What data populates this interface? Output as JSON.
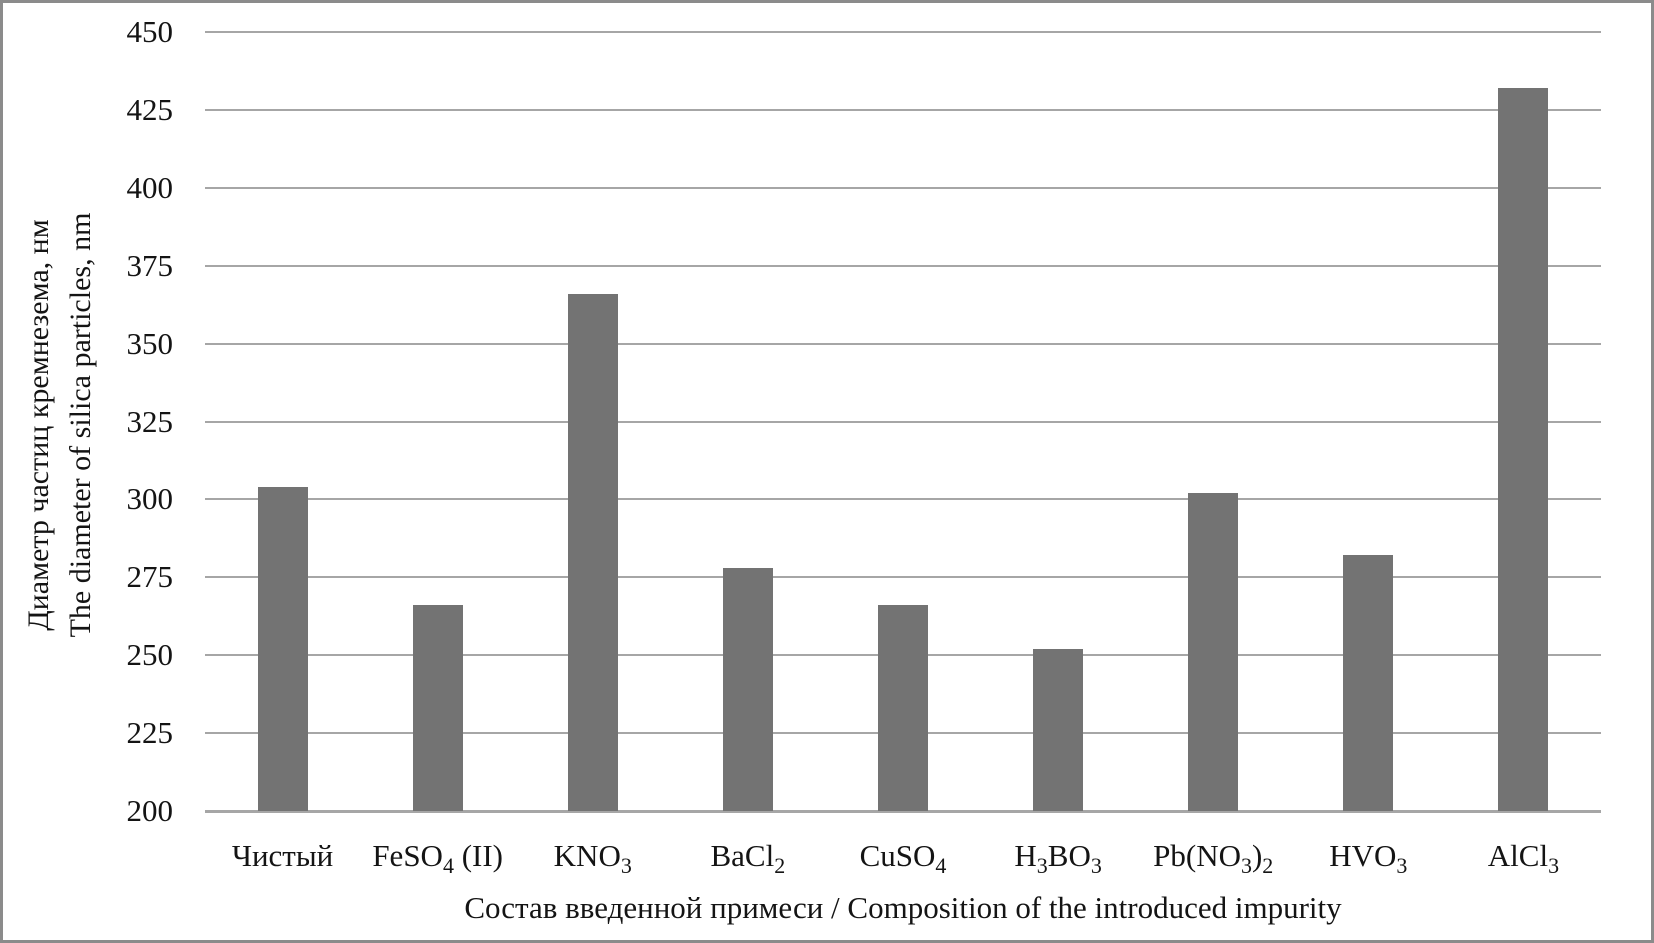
{
  "chart_data": {
    "type": "bar",
    "title": "",
    "categories": [
      "Чистый",
      "FeSO4 (II)",
      "KNO3",
      "BaCl2",
      "CuSO4",
      "H3BO3",
      "Pb(NO3)2",
      "HVO3",
      "AlCl3"
    ],
    "categories_rich": [
      [
        {
          "t": "Чистый"
        }
      ],
      [
        {
          "t": "FeSO"
        },
        {
          "sub": "4"
        },
        {
          "t": " (II)"
        }
      ],
      [
        {
          "t": "KNO"
        },
        {
          "sub": "3"
        }
      ],
      [
        {
          "t": "BaCl"
        },
        {
          "sub": "2"
        }
      ],
      [
        {
          "t": "CuSO"
        },
        {
          "sub": "4"
        }
      ],
      [
        {
          "t": "H"
        },
        {
          "sub": "3"
        },
        {
          "t": "BO"
        },
        {
          "sub": "3"
        }
      ],
      [
        {
          "t": "Pb(NO"
        },
        {
          "sub": "3"
        },
        {
          "t": ")"
        },
        {
          "sub": "2"
        }
      ],
      [
        {
          "t": "HVO"
        },
        {
          "sub": "3"
        }
      ],
      [
        {
          "t": "AlCl"
        },
        {
          "sub": "3"
        }
      ]
    ],
    "values": [
      304,
      266,
      366,
      278,
      266,
      252,
      302,
      282,
      432
    ],
    "ylabel_line1": "Диаметр частиц кремнезема, нм",
    "ylabel_line2": "The diameter of silica particles, nm",
    "xlabel": "Состав введенной примеси / Composition of the introduced impurity",
    "ylim": [
      200,
      450
    ],
    "ytick_step": 25,
    "ytick_labels": [
      "200",
      "225",
      "250",
      "275",
      "300",
      "325",
      "350",
      "375",
      "400",
      "425",
      "450"
    ],
    "grid": true,
    "legend": "none",
    "bar_color": "#737373",
    "gridline_color": "#a6a6a6",
    "text_color": "#141414",
    "frame_color": "#8b8b8b"
  }
}
